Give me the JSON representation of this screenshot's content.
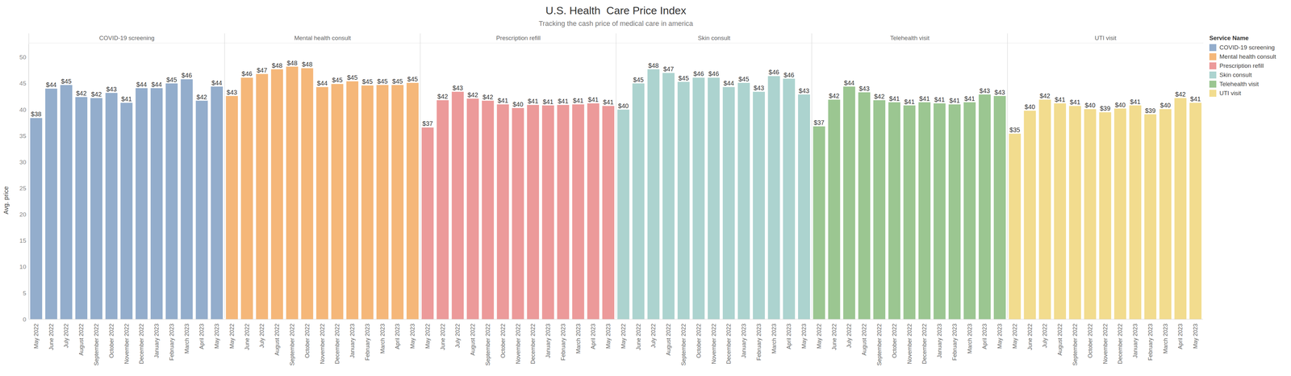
{
  "chart_data": {
    "type": "bar",
    "title": "U.S. Health  Care Price Index",
    "subtitle": "Tracking the cash price of medical care in america",
    "y_label": "Avg. price",
    "legend_title": "Service Name",
    "legend": "top-right",
    "data_labels": true,
    "categories": [
      "May 2022",
      "June 2022",
      "July 2022",
      "August 2022",
      "September 2022",
      "October 2022",
      "November 2022",
      "December 2022",
      "January 2023",
      "February 2023",
      "March 2023",
      "April 2023",
      "May 2023"
    ],
    "ylim": [
      0,
      52.5
    ],
    "yticks": [
      0,
      5,
      10,
      15,
      20,
      25,
      30,
      35,
      40,
      45,
      50
    ],
    "series": [
      {
        "name": "COVID-19 screening",
        "color": "#93adcc",
        "values": [
          38.4,
          44.0,
          44.7,
          42.4,
          42.2,
          43.2,
          41.3,
          44.1,
          44.1,
          45.0,
          45.8,
          41.7,
          44.4
        ],
        "value_labels": [
          "$38",
          "$44",
          "$45",
          "$42",
          "$42",
          "$43",
          "$41",
          "$44",
          "$44",
          "$45",
          "$46",
          "$42",
          "$44"
        ]
      },
      {
        "name": "Mental health consult",
        "color": "#f5b779",
        "values": [
          42.6,
          46.1,
          46.8,
          47.7,
          48.2,
          47.9,
          44.3,
          44.9,
          45.4,
          44.6,
          44.7,
          44.7,
          45.1
        ],
        "value_labels": [
          "$43",
          "$46",
          "$47",
          "$48",
          "$48",
          "$48",
          "$44",
          "$45",
          "$45",
          "$45",
          "$45",
          "$45",
          "$45"
        ]
      },
      {
        "name": "Prescription refill",
        "color": "#ec9a9a",
        "values": [
          36.6,
          41.8,
          43.4,
          42.1,
          41.7,
          41.0,
          40.3,
          40.9,
          40.8,
          40.9,
          41.0,
          41.2,
          40.7
        ],
        "value_labels": [
          "$37",
          "$42",
          "$43",
          "$42",
          "$42",
          "$41",
          "$40",
          "$41",
          "$41",
          "$41",
          "$41",
          "$41",
          "$41"
        ]
      },
      {
        "name": "Skin consult",
        "color": "#acd3cf",
        "values": [
          40.0,
          45.0,
          47.7,
          47.0,
          45.3,
          46.1,
          46.1,
          44.3,
          45.1,
          43.4,
          46.4,
          45.9,
          42.9
        ],
        "value_labels": [
          "$40",
          "$45",
          "$48",
          "$47",
          "$45",
          "$46",
          "$46",
          "$44",
          "$45",
          "$43",
          "$46",
          "$46",
          "$43"
        ]
      },
      {
        "name": "Telehealth visit",
        "color": "#9bc691",
        "values": [
          36.8,
          41.9,
          44.4,
          43.3,
          41.8,
          41.4,
          40.8,
          41.4,
          41.2,
          41.0,
          41.4,
          42.9,
          42.6
        ],
        "value_labels": [
          "$37",
          "$42",
          "$44",
          "$43",
          "$42",
          "$41",
          "$41",
          "$41",
          "$41",
          "$41",
          "$41",
          "$43",
          "$43"
        ]
      },
      {
        "name": "UTI visit",
        "color": "#f2dc8e",
        "values": [
          35.4,
          39.8,
          41.9,
          41.2,
          40.7,
          40.1,
          39.5,
          40.2,
          40.8,
          39.1,
          40.1,
          42.2,
          41.3
        ],
        "value_labels": [
          "$35",
          "$40",
          "$42",
          "$41",
          "$41",
          "$40",
          "$39",
          "$40",
          "$41",
          "$39",
          "$40",
          "$42",
          "$41"
        ]
      }
    ]
  }
}
